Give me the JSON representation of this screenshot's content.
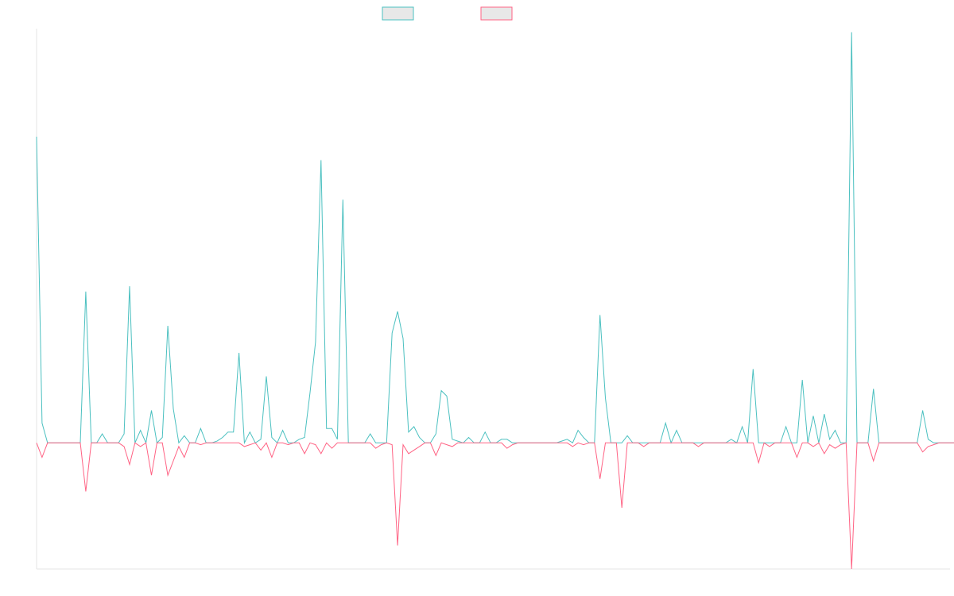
{
  "chart_data": {
    "type": "line",
    "title": "",
    "xlabel": "",
    "ylabel": "",
    "x_count": 168,
    "ylim": [
      -0.7,
      2.3
    ],
    "grid": false,
    "legend": "top-center",
    "colors": [
      "#4bc0c0",
      "#ff6384"
    ],
    "series": [
      {
        "values": [
          1.7,
          0.11,
          0,
          0,
          0,
          0,
          0,
          0,
          0,
          0.84,
          0,
          0,
          0.05,
          0,
          0,
          0,
          0.05,
          0.87,
          0,
          0.07,
          0,
          0.18,
          0,
          0.03,
          0.65,
          0.19,
          0,
          0.04,
          0,
          0,
          0.08,
          0,
          0,
          0.01,
          0.03,
          0.06,
          0.06,
          0.5,
          0,
          0.06,
          0,
          0.02,
          0.37,
          0.03,
          0,
          0.07,
          0,
          0,
          0.02,
          0.03,
          0.28,
          0.56,
          1.57,
          0.08,
          0.08,
          0.02,
          1.35,
          0,
          0,
          0,
          0,
          0.05,
          0,
          0,
          0,
          0.61,
          0.73,
          0.58,
          0.06,
          0.09,
          0.03,
          0,
          0,
          0.05,
          0.29,
          0.26,
          0.02,
          0.01,
          0,
          0.03,
          0,
          0,
          0.06,
          0,
          0,
          0.02,
          0.02,
          0,
          0,
          0,
          0,
          0,
          0,
          0,
          0,
          0,
          0.01,
          0.02,
          0,
          0.07,
          0.03,
          0,
          0,
          0.71,
          0.25,
          0,
          0,
          0,
          0.04,
          0,
          0,
          0,
          0,
          0,
          0,
          0.11,
          0,
          0.07,
          0,
          0,
          0,
          0,
          0,
          0,
          0,
          0,
          0,
          0.02,
          0,
          0.09,
          0,
          0.41,
          0,
          0,
          0,
          0,
          0,
          0.09,
          0,
          0,
          0.35,
          0,
          0.15,
          0,
          0.16,
          0.02,
          0.07,
          0,
          0,
          2.28,
          0,
          0,
          0,
          0.3,
          0,
          0,
          0,
          0,
          0,
          0,
          0,
          0,
          0.18,
          0.02,
          0,
          0,
          0,
          0,
          0
        ]
      },
      {
        "values": [
          0,
          -0.08,
          0,
          0,
          0,
          0,
          0,
          0,
          0,
          -0.27,
          0,
          0,
          0,
          0,
          0,
          0,
          -0.02,
          -0.12,
          0,
          -0.02,
          0,
          -0.18,
          0,
          0,
          -0.18,
          -0.1,
          -0.02,
          -0.08,
          0,
          0,
          -0.01,
          0,
          0,
          0,
          0,
          0,
          0,
          0,
          -0.02,
          -0.01,
          0,
          -0.04,
          0,
          -0.08,
          0,
          0,
          -0.01,
          0,
          0,
          -0.06,
          0,
          -0.01,
          -0.06,
          0,
          -0.03,
          0,
          0,
          0,
          0,
          0,
          0,
          0,
          -0.03,
          -0.01,
          0,
          -0.01,
          -0.57,
          -0.01,
          -0.06,
          -0.04,
          -0.02,
          0,
          0,
          -0.07,
          0,
          -0.01,
          -0.02,
          0,
          0,
          0,
          0,
          0,
          0,
          0,
          0,
          0,
          -0.03,
          -0.01,
          0,
          0,
          0,
          0,
          0,
          0,
          0,
          0,
          0,
          0,
          -0.02,
          0,
          -0.01,
          0,
          0,
          -0.2,
          0,
          0,
          0,
          -0.36,
          0,
          0,
          0,
          -0.02,
          0,
          0,
          0,
          0,
          0,
          0,
          0,
          0,
          0,
          -0.02,
          0,
          0,
          0,
          0,
          0,
          0,
          0,
          0,
          0,
          0,
          -0.11,
          0,
          -0.02,
          0,
          0,
          0,
          0,
          -0.08,
          0,
          0,
          -0.02,
          0,
          -0.06,
          -0.01,
          -0.03,
          -0.01,
          0,
          -0.7,
          0,
          0,
          0,
          -0.1,
          0,
          0,
          0,
          0,
          0,
          0,
          0,
          0,
          -0.05,
          -0.02,
          -0.01,
          0,
          0,
          0,
          0
        ]
      }
    ]
  }
}
